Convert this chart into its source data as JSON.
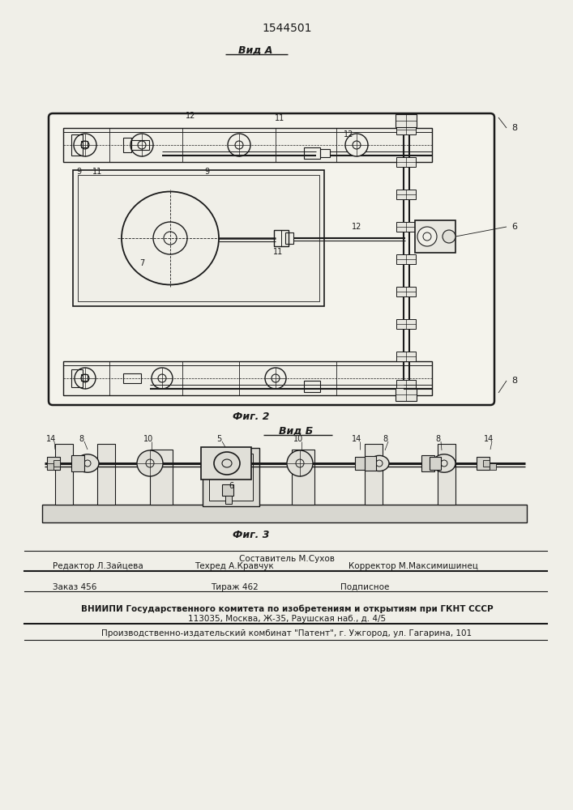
{
  "page_title": "1544501",
  "fig2_label": "Вид А",
  "fig3_label": "Вид Б",
  "fig2_caption": "Фиг. 2",
  "fig3_caption": "Фиг. 3",
  "footer_compose": "Составитель М.Сухов",
  "footer_editor": "Редактор Л.Зайцева",
  "footer_tech": "Техред А.Кравчук",
  "footer_corrector": "Корректор М.Максимишинец",
  "footer_order": "Заказ 456",
  "footer_run": "Тираж 462",
  "footer_sign": "Подписное",
  "footer_vniip1": "ВНИИПИ Государственного комитета по изобретениям и открытиям при ГКНТ СССР",
  "footer_vniip2": "113035, Москва, Ж-35, Раушская наб., д. 4/5",
  "footer_prod": "Производственно-издательский комбинат \"Патент\", г. Ужгород, ул. Гагарина, 101",
  "bg_color": "#f0efe8",
  "dc": "#1a1a1a"
}
